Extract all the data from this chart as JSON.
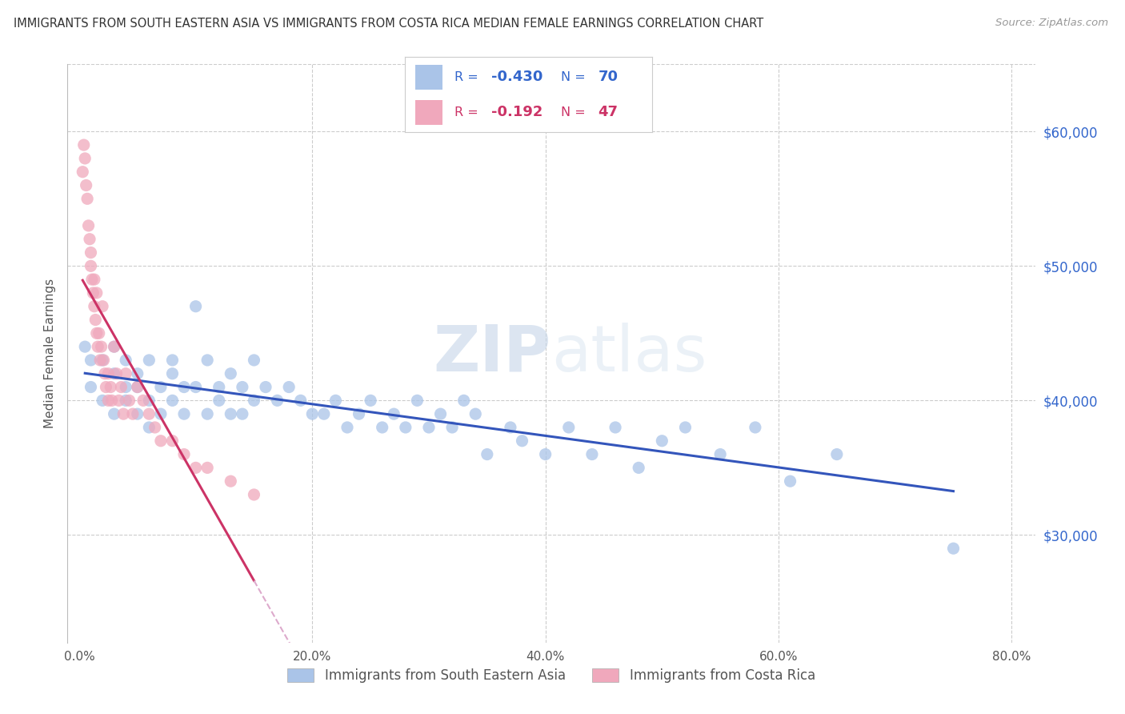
{
  "title": "IMMIGRANTS FROM SOUTH EASTERN ASIA VS IMMIGRANTS FROM COSTA RICA MEDIAN FEMALE EARNINGS CORRELATION CHART",
  "source": "Source: ZipAtlas.com",
  "ylabel": "Median Female Earnings",
  "right_yticks": [
    "$60,000",
    "$50,000",
    "$40,000",
    "$30,000"
  ],
  "right_ytick_vals": [
    60000,
    50000,
    40000,
    30000
  ],
  "watermark": "ZIPatlas",
  "blue_color": "#aac4e8",
  "pink_color": "#f0a8bc",
  "blue_line_color": "#3355bb",
  "pink_line_color": "#cc3366",
  "pink_dash_color": "#ddaacc",
  "grid_color": "#cccccc",
  "background_color": "#ffffff",
  "blue_scatter_x": [
    0.005,
    0.01,
    0.01,
    0.02,
    0.02,
    0.03,
    0.03,
    0.03,
    0.04,
    0.04,
    0.04,
    0.05,
    0.05,
    0.05,
    0.06,
    0.06,
    0.06,
    0.07,
    0.07,
    0.08,
    0.08,
    0.08,
    0.09,
    0.09,
    0.1,
    0.1,
    0.11,
    0.11,
    0.12,
    0.12,
    0.13,
    0.13,
    0.14,
    0.14,
    0.15,
    0.15,
    0.16,
    0.17,
    0.18,
    0.19,
    0.2,
    0.21,
    0.22,
    0.23,
    0.24,
    0.25,
    0.26,
    0.27,
    0.28,
    0.29,
    0.3,
    0.31,
    0.32,
    0.33,
    0.34,
    0.35,
    0.37,
    0.38,
    0.4,
    0.42,
    0.44,
    0.46,
    0.48,
    0.5,
    0.52,
    0.55,
    0.58,
    0.61,
    0.65,
    0.75
  ],
  "blue_scatter_y": [
    44000,
    43000,
    41000,
    43000,
    40000,
    42000,
    44000,
    39000,
    43000,
    41000,
    40000,
    42000,
    39000,
    41000,
    43000,
    40000,
    38000,
    41000,
    39000,
    43000,
    42000,
    40000,
    41000,
    39000,
    47000,
    41000,
    43000,
    39000,
    41000,
    40000,
    42000,
    39000,
    41000,
    39000,
    43000,
    40000,
    41000,
    40000,
    41000,
    40000,
    39000,
    39000,
    40000,
    38000,
    39000,
    40000,
    38000,
    39000,
    38000,
    40000,
    38000,
    39000,
    38000,
    40000,
    39000,
    36000,
    38000,
    37000,
    36000,
    38000,
    36000,
    38000,
    35000,
    37000,
    38000,
    36000,
    38000,
    34000,
    36000,
    29000
  ],
  "pink_scatter_x": [
    0.003,
    0.004,
    0.005,
    0.006,
    0.007,
    0.008,
    0.009,
    0.01,
    0.01,
    0.011,
    0.012,
    0.013,
    0.013,
    0.014,
    0.015,
    0.015,
    0.016,
    0.017,
    0.018,
    0.019,
    0.02,
    0.021,
    0.022,
    0.023,
    0.025,
    0.025,
    0.027,
    0.028,
    0.03,
    0.032,
    0.034,
    0.036,
    0.038,
    0.04,
    0.043,
    0.046,
    0.05,
    0.055,
    0.06,
    0.065,
    0.07,
    0.08,
    0.09,
    0.1,
    0.11,
    0.13,
    0.15
  ],
  "pink_scatter_y": [
    57000,
    59000,
    58000,
    56000,
    55000,
    53000,
    52000,
    51000,
    50000,
    49000,
    48000,
    47000,
    49000,
    46000,
    48000,
    45000,
    44000,
    45000,
    43000,
    44000,
    47000,
    43000,
    42000,
    41000,
    42000,
    40000,
    41000,
    40000,
    44000,
    42000,
    40000,
    41000,
    39000,
    42000,
    40000,
    39000,
    41000,
    40000,
    39000,
    38000,
    37000,
    37000,
    36000,
    35000,
    35000,
    34000,
    33000
  ],
  "blue_dot_size": 120,
  "pink_dot_size": 120,
  "ylim_min": 22000,
  "ylim_max": 65000,
  "xlim_min": -0.01,
  "xlim_max": 0.82
}
